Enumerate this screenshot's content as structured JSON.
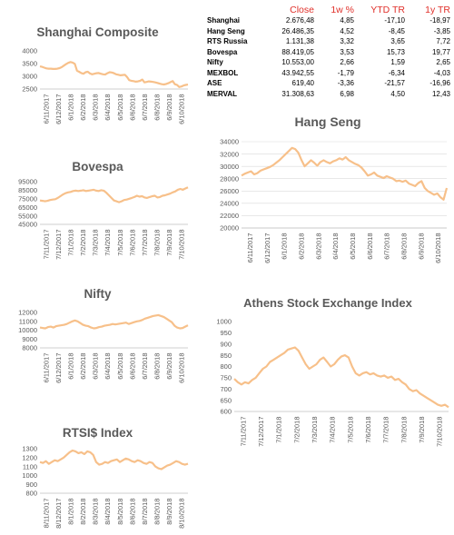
{
  "summary_table": {
    "headers": [
      "",
      "Close",
      "1w %",
      "YTD TR",
      "1y TR"
    ],
    "rows": [
      [
        "Shanghai",
        "2.676,48",
        "4,85",
        "-17,10",
        "-18,97"
      ],
      [
        "Hang Seng",
        "26.486,35",
        "4,52",
        "-8,45",
        "-3,85"
      ],
      [
        "RTS Russia",
        "1.131,38",
        "3,32",
        "3,65",
        "7,72"
      ],
      [
        "Bovespa",
        "88.419,05",
        "3,53",
        "15,73",
        "19,77"
      ],
      [
        "Nifty",
        "10.553,00",
        "2,66",
        "1,59",
        "2,65"
      ],
      [
        "MEXBOL",
        "43.942,55",
        "-1,79",
        "-6,34",
        "-4,03"
      ],
      [
        "ASE",
        "619,40",
        "-3,36",
        "-21,57",
        "-16,96"
      ],
      [
        "MERVAL",
        "31.308,63",
        "6,98",
        "4,50",
        "12,43"
      ]
    ]
  },
  "colors": {
    "series": "#f7c08a",
    "header": "#e0302a",
    "grid": "#d9d9d9"
  },
  "chart_data": [
    {
      "id": "shanghai",
      "type": "line",
      "title": "Shanghai Composite",
      "ylim": [
        2500,
        4000
      ],
      "y_ticks": [
        2500,
        3000,
        3500,
        4000
      ],
      "y_tick_labels": [
        "2500",
        "3000",
        "3500",
        "4000"
      ],
      "x_tick_labels": [
        "6/11/2017",
        "6/12/2017",
        "6/1/2018",
        "6/2/2018",
        "6/3/2018",
        "6/4/2018",
        "6/5/2018",
        "6/6/2018",
        "6/7/2018",
        "6/8/2018",
        "6/9/2018",
        "6/10/2018"
      ],
      "grid": false,
      "series": [
        {
          "values": [
            3390,
            3370,
            3340,
            3310,
            3300,
            3300,
            3290,
            3290,
            3300,
            3320,
            3360,
            3420,
            3480,
            3530,
            3560,
            3540,
            3490,
            3220,
            3180,
            3130,
            3100,
            3160,
            3180,
            3110,
            3080,
            3100,
            3120,
            3130,
            3100,
            3080,
            3070,
            3120,
            3160,
            3150,
            3120,
            3080,
            3060,
            3040,
            3050,
            3060,
            2970,
            2850,
            2820,
            2810,
            2790,
            2800,
            2820,
            2870,
            2760,
            2780,
            2800,
            2790,
            2780,
            2760,
            2740,
            2710,
            2690,
            2680,
            2700,
            2730,
            2770,
            2810,
            2690,
            2660,
            2580,
            2600,
            2640,
            2660,
            2676
          ]
        }
      ]
    },
    {
      "id": "bovespa",
      "type": "line",
      "title": "Bovespa",
      "ylim": [
        45000,
        95000
      ],
      "y_ticks": [
        45000,
        55000,
        65000,
        75000,
        85000,
        95000
      ],
      "y_tick_labels": [
        "45000",
        "55000",
        "65000",
        "75000",
        "85000",
        "95000"
      ],
      "x_tick_labels": [
        "7/11/2017",
        "7/12/2017",
        "7/1/2018",
        "7/2/2018",
        "7/3/2018",
        "7/4/2018",
        "7/5/2018",
        "7/6/2018",
        "7/7/2018",
        "7/8/2018",
        "7/9/2018",
        "7/10/2018"
      ],
      "grid": false,
      "series": [
        {
          "values": [
            73000,
            72500,
            72000,
            72500,
            73500,
            74000,
            74500,
            76000,
            78000,
            80000,
            81500,
            82500,
            83000,
            84000,
            84500,
            84000,
            84500,
            85000,
            84000,
            84500,
            85000,
            85500,
            84500,
            84000,
            85000,
            84500,
            82000,
            79000,
            76000,
            73000,
            72000,
            71000,
            72000,
            73500,
            74000,
            75000,
            76000,
            77000,
            78500,
            77500,
            78000,
            76500,
            76000,
            77000,
            78000,
            78500,
            76500,
            77000,
            78500,
            79000,
            80000,
            81000,
            82500,
            83500,
            85500,
            86500,
            85500,
            87000,
            88419
          ]
        }
      ]
    },
    {
      "id": "nifty",
      "type": "line",
      "title": "Nifty",
      "ylim": [
        8000,
        12000
      ],
      "y_ticks": [
        8000,
        9000,
        10000,
        11000,
        12000
      ],
      "y_tick_labels": [
        "8000",
        "9000",
        "10000",
        "11000",
        "12000"
      ],
      "x_tick_labels": [
        "6/11/2017",
        "6/12/2017",
        "6/1/2018",
        "6/2/2018",
        "6/3/2018",
        "6/4/2018",
        "6/5/2018",
        "6/6/2018",
        "6/7/2018",
        "6/8/2018",
        "6/9/2018",
        "6/10/2018"
      ],
      "grid": false,
      "series": [
        {
          "values": [
            10300,
            10250,
            10200,
            10350,
            10400,
            10300,
            10450,
            10500,
            10550,
            10600,
            10700,
            10850,
            11000,
            11100,
            11000,
            10800,
            10600,
            10500,
            10450,
            10300,
            10200,
            10250,
            10350,
            10400,
            10500,
            10550,
            10600,
            10700,
            10650,
            10700,
            10750,
            10800,
            10850,
            10700,
            10800,
            10900,
            11000,
            11050,
            11150,
            11300,
            11400,
            11500,
            11600,
            11650,
            11700,
            11600,
            11500,
            11300,
            11100,
            10900,
            10500,
            10300,
            10200,
            10250,
            10400,
            10553
          ]
        }
      ]
    },
    {
      "id": "rts",
      "type": "line",
      "title": "RTSI$ Index",
      "ylim": [
        800,
        1300
      ],
      "y_ticks": [
        800,
        900,
        1000,
        1100,
        1200,
        1300
      ],
      "y_tick_labels": [
        "800",
        "900",
        "1000",
        "1100",
        "1200",
        "1300"
      ],
      "x_tick_labels": [
        "8/11/2017",
        "8/12/2017",
        "8/1/2018",
        "8/2/2018",
        "8/3/2018",
        "8/4/2018",
        "8/5/2018",
        "8/6/2018",
        "8/7/2018",
        "8/8/2018",
        "8/9/2018",
        "8/10/2018"
      ],
      "grid": false,
      "series": [
        {
          "values": [
            1150,
            1140,
            1160,
            1130,
            1150,
            1170,
            1160,
            1180,
            1200,
            1230,
            1260,
            1280,
            1270,
            1250,
            1260,
            1240,
            1270,
            1260,
            1230,
            1150,
            1120,
            1130,
            1150,
            1140,
            1160,
            1170,
            1180,
            1150,
            1170,
            1190,
            1180,
            1160,
            1150,
            1170,
            1160,
            1140,
            1130,
            1150,
            1140,
            1100,
            1080,
            1070,
            1090,
            1110,
            1120,
            1140,
            1160,
            1150,
            1130,
            1120,
            1131
          ]
        }
      ]
    },
    {
      "id": "hangseng",
      "type": "line",
      "title": "Hang Seng",
      "ylim": [
        20000,
        34000
      ],
      "y_ticks": [
        20000,
        22000,
        24000,
        26000,
        28000,
        30000,
        32000,
        34000
      ],
      "y_tick_labels": [
        "20000",
        "22000",
        "24000",
        "26000",
        "28000",
        "30000",
        "32000",
        "34000"
      ],
      "x_tick_labels": [
        "6/11/2017",
        "6/12/2017",
        "6/1/2018",
        "6/2/2018",
        "6/3/2018",
        "6/4/2018",
        "6/5/2018",
        "6/6/2018",
        "6/7/2018",
        "6/8/2018",
        "6/9/2018",
        "6/10/2018"
      ],
      "grid": true,
      "series": [
        {
          "values": [
            28500,
            28800,
            29000,
            29200,
            28700,
            28900,
            29300,
            29500,
            29700,
            29900,
            30200,
            30600,
            31000,
            31500,
            32000,
            32500,
            33000,
            32800,
            32200,
            31000,
            30000,
            30500,
            31000,
            30600,
            30100,
            30700,
            31000,
            30700,
            30500,
            30800,
            31000,
            31300,
            31100,
            31500,
            31000,
            30700,
            30400,
            30200,
            29800,
            29200,
            28500,
            28700,
            29000,
            28500,
            28300,
            28100,
            28400,
            28200,
            28000,
            27600,
            27700,
            27500,
            27700,
            27200,
            27000,
            26800,
            27300,
            27600,
            26500,
            26000,
            25700,
            25400,
            25600,
            25000,
            24600,
            26486
          ]
        }
      ]
    },
    {
      "id": "athens",
      "type": "line",
      "title": "Athens Stock Exchange Index",
      "ylim": [
        600,
        1000
      ],
      "y_ticks": [
        600,
        650,
        700,
        750,
        800,
        850,
        900,
        950,
        1000
      ],
      "y_tick_labels": [
        "600",
        "650",
        "700",
        "750",
        "800",
        "850",
        "900",
        "950",
        "1000"
      ],
      "x_tick_labels": [
        "7/11/2017",
        "7/12/2017",
        "7/1/2018",
        "7/2/2018",
        "7/3/2018",
        "7/4/2018",
        "7/5/2018",
        "7/6/2018",
        "7/7/2018",
        "7/8/2018",
        "7/9/2018",
        "7/10/2018"
      ],
      "grid": false,
      "series": [
        {
          "values": [
            745,
            730,
            720,
            730,
            725,
            740,
            750,
            770,
            790,
            800,
            820,
            830,
            840,
            850,
            860,
            875,
            880,
            885,
            870,
            840,
            810,
            790,
            800,
            810,
            830,
            840,
            820,
            800,
            810,
            830,
            845,
            850,
            840,
            800,
            770,
            760,
            770,
            775,
            765,
            770,
            760,
            755,
            760,
            750,
            755,
            740,
            745,
            730,
            720,
            700,
            690,
            695,
            680,
            670,
            660,
            650,
            640,
            630,
            625,
            630,
            619
          ]
        }
      ]
    }
  ]
}
